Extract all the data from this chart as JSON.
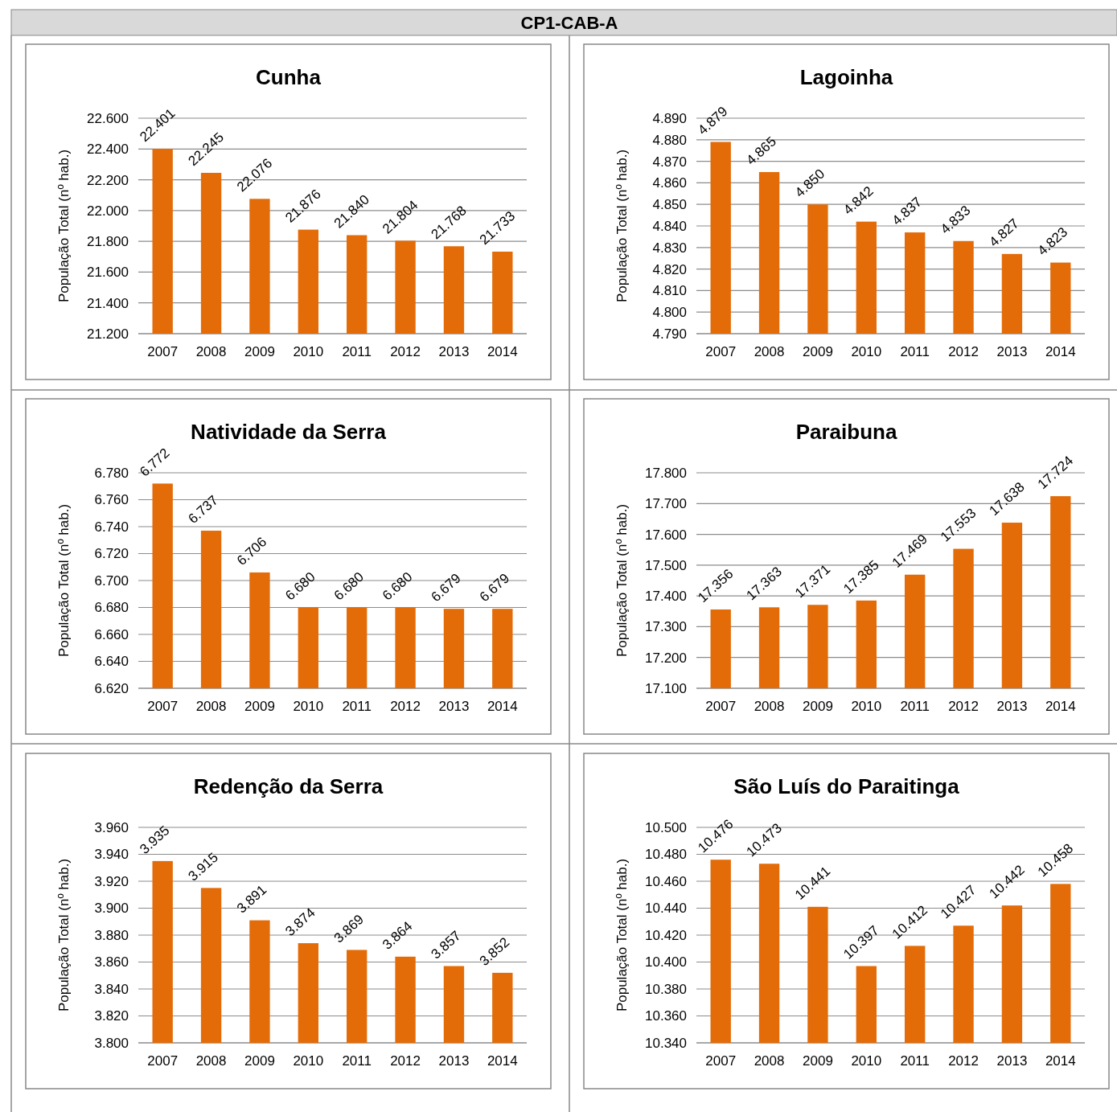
{
  "chart_data": [
    {
      "type": "other",
      "title": "CP1-CAB-A"
    },
    {
      "type": "bar",
      "title": "Cunha",
      "ylabel": "População Total (nº hab.)",
      "categories": [
        "2007",
        "2008",
        "2009",
        "2010",
        "2011",
        "2012",
        "2013",
        "2014"
      ],
      "values": [
        22401,
        22245,
        22076,
        21876,
        21840,
        21804,
        21768,
        21733
      ],
      "value_labels": [
        "22.401",
        "22.245",
        "22.076",
        "21.876",
        "21.840",
        "21.804",
        "21.768",
        "21.733"
      ],
      "color": "#e36c09",
      "ylim": [
        21200,
        22600
      ],
      "yticks": [
        {
          "value": 21200,
          "label": "21.200"
        },
        {
          "value": 21400,
          "label": "21.400"
        },
        {
          "value": 21600,
          "label": "21.600"
        },
        {
          "value": 21800,
          "label": "21.800"
        },
        {
          "value": 22000,
          "label": "22.000"
        },
        {
          "value": 22200,
          "label": "22.200"
        },
        {
          "value": 22400,
          "label": "22.400"
        },
        {
          "value": 22600,
          "label": "22.600"
        }
      ],
      "grid": "y"
    },
    {
      "type": "bar",
      "title": "Lagoinha",
      "ylabel": "População Total (nº hab.)",
      "categories": [
        "2007",
        "2008",
        "2009",
        "2010",
        "2011",
        "2012",
        "2013",
        "2014"
      ],
      "values": [
        4879,
        4865,
        4850,
        4842,
        4837,
        4833,
        4827,
        4823
      ],
      "value_labels": [
        "4.879",
        "4.865",
        "4.850",
        "4.842",
        "4.837",
        "4.833",
        "4.827",
        "4.823"
      ],
      "color": "#e36c09",
      "ylim": [
        4790,
        4890
      ],
      "yticks": [
        {
          "value": 4790,
          "label": "4.790"
        },
        {
          "value": 4800,
          "label": "4.800"
        },
        {
          "value": 4810,
          "label": "4.810"
        },
        {
          "value": 4820,
          "label": "4.820"
        },
        {
          "value": 4830,
          "label": "4.830"
        },
        {
          "value": 4840,
          "label": "4.840"
        },
        {
          "value": 4850,
          "label": "4.850"
        },
        {
          "value": 4860,
          "label": "4.860"
        },
        {
          "value": 4870,
          "label": "4.870"
        },
        {
          "value": 4880,
          "label": "4.880"
        },
        {
          "value": 4890,
          "label": "4.890"
        }
      ],
      "grid": "y"
    },
    {
      "type": "bar",
      "title": "Natividade da Serra",
      "ylabel": "População Total (nº hab.)",
      "categories": [
        "2007",
        "2008",
        "2009",
        "2010",
        "2011",
        "2012",
        "2013",
        "2014"
      ],
      "values": [
        6772,
        6737,
        6706,
        6680,
        6680,
        6680,
        6679,
        6679
      ],
      "value_labels": [
        "6.772",
        "6.737",
        "6.706",
        "6.680",
        "6.680",
        "6.680",
        "6.679",
        "6.679"
      ],
      "color": "#e36c09",
      "ylim": [
        6620,
        6780
      ],
      "yticks": [
        {
          "value": 6620,
          "label": "6.620"
        },
        {
          "value": 6640,
          "label": "6.640"
        },
        {
          "value": 6660,
          "label": "6.660"
        },
        {
          "value": 6680,
          "label": "6.680"
        },
        {
          "value": 6700,
          "label": "6.700"
        },
        {
          "value": 6720,
          "label": "6.720"
        },
        {
          "value": 6740,
          "label": "6.740"
        },
        {
          "value": 6760,
          "label": "6.760"
        },
        {
          "value": 6780,
          "label": "6.780"
        }
      ],
      "grid": "y"
    },
    {
      "type": "bar",
      "title": "Paraibuna",
      "ylabel": "População Total (nº hab.)",
      "categories": [
        "2007",
        "2008",
        "2009",
        "2010",
        "2011",
        "2012",
        "2013",
        "2014"
      ],
      "values": [
        17356,
        17363,
        17371,
        17385,
        17469,
        17553,
        17638,
        17724
      ],
      "value_labels": [
        "17.356",
        "17.363",
        "17.371",
        "17.385",
        "17.469",
        "17.553",
        "17.638",
        "17.724"
      ],
      "color": "#e36c09",
      "ylim": [
        17100,
        17800
      ],
      "yticks": [
        {
          "value": 17100,
          "label": "17.100"
        },
        {
          "value": 17200,
          "label": "17.200"
        },
        {
          "value": 17300,
          "label": "17.300"
        },
        {
          "value": 17400,
          "label": "17.400"
        },
        {
          "value": 17500,
          "label": "17.500"
        },
        {
          "value": 17600,
          "label": "17.600"
        },
        {
          "value": 17700,
          "label": "17.700"
        },
        {
          "value": 17800,
          "label": "17.800"
        }
      ],
      "grid": "y"
    },
    {
      "type": "bar",
      "title": "Redenção da Serra",
      "ylabel": "População Total (nº hab.)",
      "categories": [
        "2007",
        "2008",
        "2009",
        "2010",
        "2011",
        "2012",
        "2013",
        "2014"
      ],
      "values": [
        3935,
        3915,
        3891,
        3874,
        3869,
        3864,
        3857,
        3852
      ],
      "value_labels": [
        "3.935",
        "3.915",
        "3.891",
        "3.874",
        "3.869",
        "3.864",
        "3.857",
        "3.852"
      ],
      "color": "#e36c09",
      "ylim": [
        3800,
        3960
      ],
      "yticks": [
        {
          "value": 3800,
          "label": "3.800"
        },
        {
          "value": 3820,
          "label": "3.820"
        },
        {
          "value": 3840,
          "label": "3.840"
        },
        {
          "value": 3860,
          "label": "3.860"
        },
        {
          "value": 3880,
          "label": "3.880"
        },
        {
          "value": 3900,
          "label": "3.900"
        },
        {
          "value": 3920,
          "label": "3.920"
        },
        {
          "value": 3940,
          "label": "3.940"
        },
        {
          "value": 3960,
          "label": "3.960"
        }
      ],
      "grid": "y"
    },
    {
      "type": "bar",
      "title": "São Luís do Paraitinga",
      "ylabel": "População Total (nº hab.)",
      "categories": [
        "2007",
        "2008",
        "2009",
        "2010",
        "2011",
        "2012",
        "2013",
        "2014"
      ],
      "values": [
        10476,
        10473,
        10441,
        10397,
        10412,
        10427,
        10442,
        10458
      ],
      "value_labels": [
        "10.476",
        "10.473",
        "10.441",
        "10.397",
        "10.412",
        "10.427",
        "10.442",
        "10.458"
      ],
      "color": "#e36c09",
      "ylim": [
        10340,
        10500
      ],
      "yticks": [
        {
          "value": 10340,
          "label": "10.340"
        },
        {
          "value": 10360,
          "label": "10.360"
        },
        {
          "value": 10380,
          "label": "10.380"
        },
        {
          "value": 10400,
          "label": "10.400"
        },
        {
          "value": 10420,
          "label": "10.420"
        },
        {
          "value": 10440,
          "label": "10.440"
        },
        {
          "value": 10460,
          "label": "10.460"
        },
        {
          "value": 10480,
          "label": "10.480"
        },
        {
          "value": 10500,
          "label": "10.500"
        }
      ],
      "grid": "y"
    }
  ]
}
